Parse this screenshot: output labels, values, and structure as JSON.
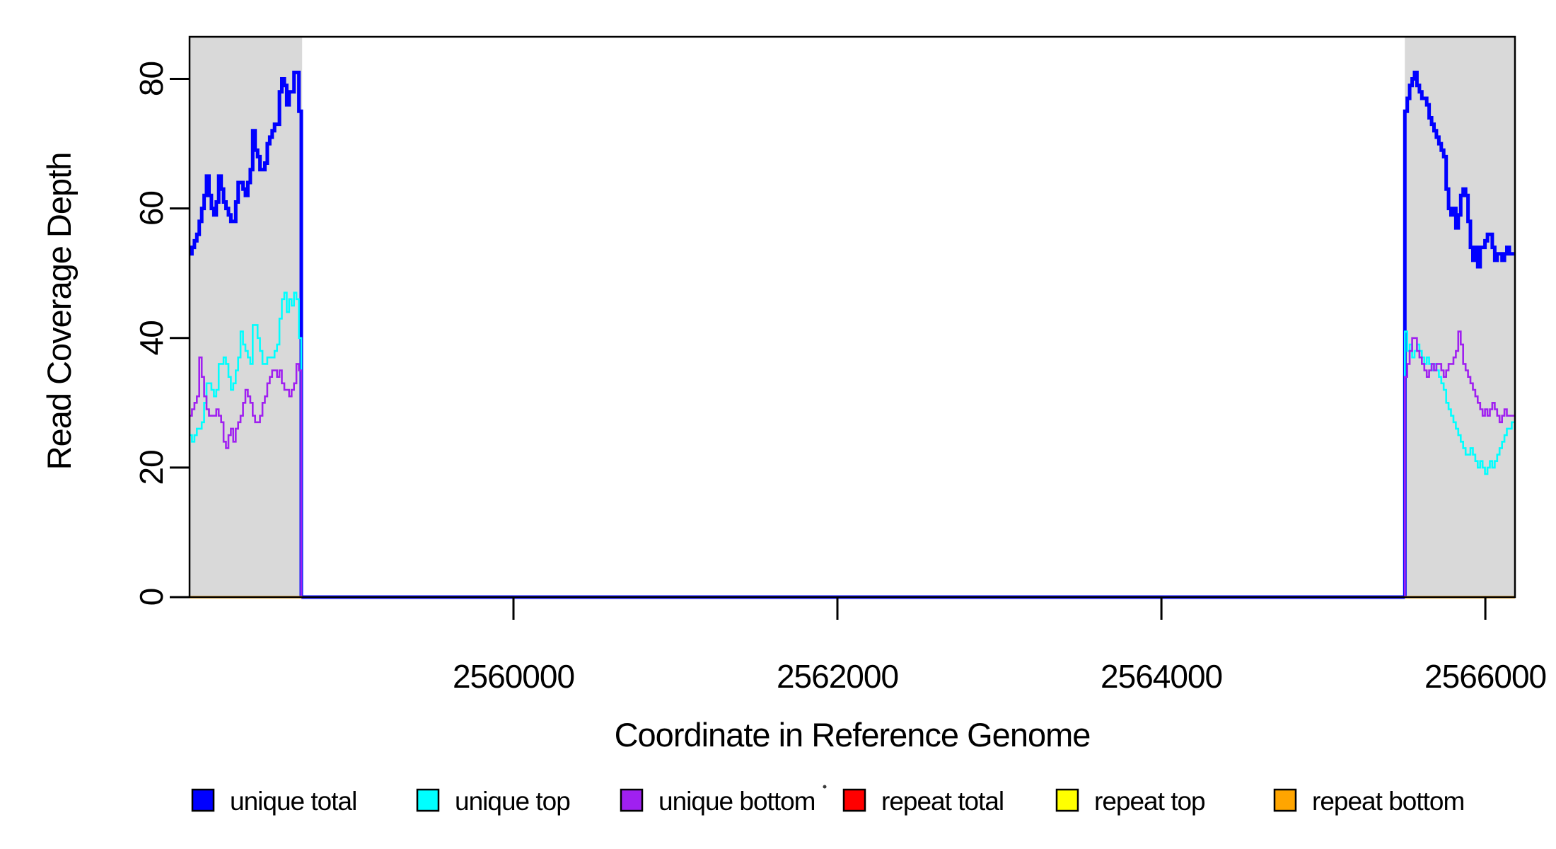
{
  "chart_data": {
    "type": "line",
    "subtype": "step-coverage-plot",
    "title": "",
    "xlabel": "Coordinate in Reference Genome",
    "ylabel": "Read Coverage Depth",
    "xlim": [
      2558000,
      2566183
    ],
    "ylim": [
      0,
      86.5
    ],
    "xticks": [
      2560000,
      2562000,
      2564000,
      2566000
    ],
    "yticks": [
      0,
      20,
      40,
      60,
      80
    ],
    "grid": false,
    "legend_position": "bottom",
    "background_color": "#FFFFFF",
    "shade_color": "#D9D9D9",
    "shaded_regions": [
      {
        "start": 2558000,
        "end": 2558695
      },
      {
        "start": 2565503,
        "end": 2566183
      }
    ],
    "step_bp": 15,
    "series": [
      {
        "name": "unique total",
        "color": "#0000FF",
        "line_width": 5,
        "zero_between_segments": true,
        "segments": [
          {
            "x_start": 2558000,
            "end_drop_to_zero": true,
            "values": [
              53,
              54,
              55,
              56,
              58,
              60,
              62,
              65,
              62,
              60,
              59,
              61,
              65,
              63,
              61,
              60,
              59,
              58,
              58,
              61,
              64,
              64,
              63,
              62,
              64,
              66,
              72,
              69,
              68,
              66,
              66,
              67,
              70,
              71,
              72,
              73,
              73,
              78,
              80,
              79,
              76,
              78,
              78,
              81,
              81,
              75
            ]
          },
          {
            "x_start": 2565503,
            "begin_rise_from_zero": true,
            "values": [
              75,
              77,
              79,
              80,
              81,
              79,
              78,
              77,
              77,
              76,
              74,
              73,
              72,
              71,
              70,
              69,
              68,
              63,
              60,
              59,
              60,
              57,
              59,
              62,
              63,
              62,
              58,
              54,
              52,
              54,
              51,
              54,
              54,
              55,
              56,
              56,
              54,
              52,
              53,
              53,
              52,
              53,
              54,
              53,
              53
            ]
          }
        ]
      },
      {
        "name": "unique top",
        "color": "#00FFFF",
        "line_width": 2.6,
        "zero_between_segments": true,
        "segments": [
          {
            "x_start": 2558000,
            "end_drop_to_zero": true,
            "values": [
              25,
              24,
              25,
              26,
              26,
              27,
              30,
              33,
              33,
              32,
              31,
              32,
              36,
              36,
              37,
              36,
              34,
              32,
              33,
              35,
              37,
              41,
              39,
              38,
              37,
              36,
              42,
              42,
              40,
              38,
              36,
              36,
              37,
              37,
              37,
              38,
              39,
              43,
              46,
              47,
              44,
              46,
              45,
              47,
              46,
              40
            ]
          },
          {
            "x_start": 2565503,
            "begin_rise_from_zero": true,
            "values": [
              41,
              38,
              39,
              37,
              38,
              39,
              38,
              37,
              36,
              37,
              36,
              35,
              36,
              35,
              34,
              33,
              32,
              30,
              29,
              28,
              27,
              26,
              25,
              24,
              23,
              22,
              22,
              23,
              22,
              21,
              20,
              21,
              20,
              19,
              20,
              21,
              20,
              21,
              22,
              23,
              24,
              25,
              26,
              26,
              27
            ]
          }
        ]
      },
      {
        "name": "unique bottom",
        "color": "#A020F0",
        "line_width": 2.6,
        "zero_between_segments": true,
        "segments": [
          {
            "x_start": 2558000,
            "end_drop_to_zero": true,
            "values": [
              28,
              29,
              30,
              31,
              37,
              34,
              31,
              29,
              28,
              28,
              28,
              29,
              28,
              27,
              24,
              23,
              25,
              26,
              24,
              26,
              27,
              28,
              30,
              32,
              31,
              30,
              28,
              27,
              27,
              28,
              30,
              31,
              33,
              34,
              35,
              35,
              34,
              35,
              33,
              32,
              32,
              31,
              32,
              33,
              36,
              35
            ]
          },
          {
            "x_start": 2565503,
            "begin_rise_from_zero": true,
            "values": [
              34,
              36,
              38,
              40,
              40,
              38,
              37,
              36,
              35,
              34,
              35,
              36,
              35,
              36,
              36,
              35,
              34,
              35,
              36,
              36,
              37,
              38,
              41,
              39,
              36,
              35,
              34,
              33,
              32,
              31,
              30,
              29,
              28,
              29,
              28,
              29,
              30,
              29,
              28,
              27,
              28,
              29,
              28,
              28,
              28
            ]
          }
        ]
      },
      {
        "name": "repeat total",
        "color": "#FF0000",
        "line_width": 3,
        "segments": [
          {
            "x_start": 2558000,
            "x_end": 2558695,
            "flat_value": 0
          },
          {
            "x_start": 2565503,
            "x_end": 2566183,
            "flat_value": 0
          }
        ]
      },
      {
        "name": "repeat top",
        "color": "#FFFF00",
        "line_width": 3,
        "segments": [
          {
            "x_start": 2558000,
            "x_end": 2558695,
            "flat_value": 0
          },
          {
            "x_start": 2565503,
            "x_end": 2566183,
            "flat_value": 0
          }
        ]
      },
      {
        "name": "repeat bottom",
        "color": "#FFA500",
        "line_width": 3.5,
        "segments": [
          {
            "x_start": 2558000,
            "x_end": 2558695,
            "flat_value": 0
          },
          {
            "x_start": 2565503,
            "x_end": 2566183,
            "flat_value": 0
          }
        ]
      }
    ],
    "legend": {
      "entries": [
        {
          "label": "unique total",
          "color": "#0000FF"
        },
        {
          "label": "unique top",
          "color": "#00FFFF"
        },
        {
          "label": "unique bottom",
          "color": "#A020F0"
        },
        {
          "label": "repeat total",
          "color": "#FF0000"
        },
        {
          "label": "repeat top",
          "color": "#FFFF00"
        },
        {
          "label": "repeat bottom",
          "color": "#FFA500"
        }
      ],
      "stray_mark": "·"
    }
  }
}
